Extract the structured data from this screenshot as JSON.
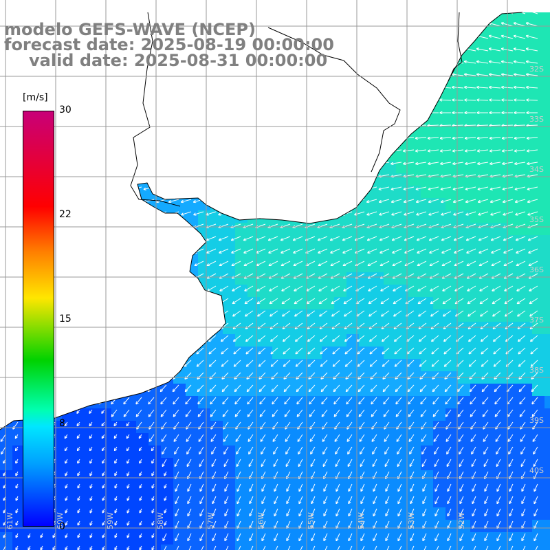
{
  "title": {
    "line1": "modelo GEFS-WAVE (NCEP)",
    "line2": "forecast date: 2025-08-19 00:00:00",
    "line3": "valid date: 2025-08-31 00:00:00"
  },
  "colorbar": {
    "unit": "[m/s]",
    "ticks": [
      "30",
      "22",
      "15",
      "8",
      "0"
    ],
    "range": [
      0,
      30
    ],
    "colors": [
      "#0000ff",
      "#00a0ff",
      "#00e6ff",
      "#00ffb0",
      "#00d200",
      "#ffe600",
      "#ff8000",
      "#ff0000",
      "#c80078"
    ]
  },
  "map": {
    "variable": "wind speed and direction",
    "latitude_labels": [
      "32S",
      "33S",
      "34S",
      "35S",
      "36S",
      "37S",
      "38S",
      "39S",
      "40S"
    ],
    "longitude_labels": [
      "61W",
      "60W",
      "59W",
      "58W",
      "57W",
      "56W",
      "55W",
      "54W",
      "53W",
      "52W"
    ],
    "land_color": "#ffffff",
    "grid_color": "#999999"
  }
}
